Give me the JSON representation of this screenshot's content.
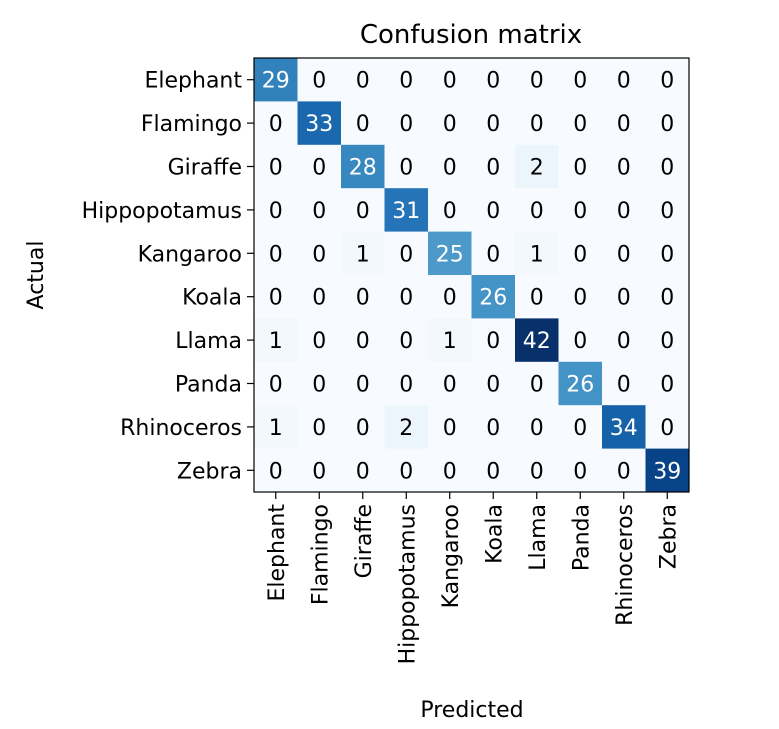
{
  "chart_data": {
    "type": "heatmap",
    "title": "Confusion matrix",
    "xlabel": "Predicted",
    "ylabel": "Actual",
    "row_labels": [
      "Elephant",
      "Flamingo",
      "Giraffe",
      "Hippopotamus",
      "Kangaroo",
      "Koala",
      "Llama",
      "Panda",
      "Rhinoceros",
      "Zebra"
    ],
    "col_labels": [
      "Elephant",
      "Flamingo",
      "Giraffe",
      "Hippopotamus",
      "Kangaroo",
      "Koala",
      "Llama",
      "Panda",
      "Rhinoceros",
      "Zebra"
    ],
    "values": [
      [
        29,
        0,
        0,
        0,
        0,
        0,
        0,
        0,
        0,
        0
      ],
      [
        0,
        33,
        0,
        0,
        0,
        0,
        0,
        0,
        0,
        0
      ],
      [
        0,
        0,
        28,
        0,
        0,
        0,
        2,
        0,
        0,
        0
      ],
      [
        0,
        0,
        0,
        31,
        0,
        0,
        0,
        0,
        0,
        0
      ],
      [
        0,
        0,
        1,
        0,
        25,
        0,
        1,
        0,
        0,
        0
      ],
      [
        0,
        0,
        0,
        0,
        0,
        26,
        0,
        0,
        0,
        0
      ],
      [
        1,
        0,
        0,
        0,
        1,
        0,
        42,
        0,
        0,
        0
      ],
      [
        0,
        0,
        0,
        0,
        0,
        0,
        0,
        26,
        0,
        0
      ],
      [
        1,
        0,
        0,
        2,
        0,
        0,
        0,
        0,
        34,
        0
      ],
      [
        0,
        0,
        0,
        0,
        0,
        0,
        0,
        0,
        0,
        39
      ]
    ],
    "colormap": "Blues",
    "grid": false
  }
}
